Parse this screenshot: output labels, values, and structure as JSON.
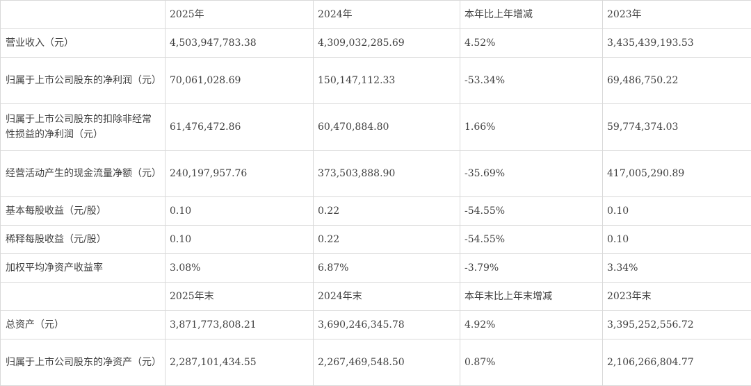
{
  "header_row_1": {
    "label": "",
    "col1": "2025年",
    "col2": "2024年",
    "col3": "本年比上年增减",
    "col4": "2023年"
  },
  "rows_1": [
    {
      "label": "营业收入（元）",
      "col1": "4,503,947,783.38",
      "col2": "4,309,032,285.69",
      "col3": "4.52%",
      "col4": "3,435,439,193.53"
    },
    {
      "label": "归属于上市公司股东的净利润（元）",
      "col1": "70,061,028.69",
      "col2": "150,147,112.33",
      "col3": "-53.34%",
      "col4": "69,486,750.22"
    },
    {
      "label": "归属于上市公司股东的扣除非经常性损益的净利润（元）",
      "col1": "61,476,472.86",
      "col2": "60,470,884.80",
      "col3": "1.66%",
      "col4": "59,774,374.03"
    },
    {
      "label": "经营活动产生的现金流量净额（元）",
      "col1": "240,197,957.76",
      "col2": "373,503,888.90",
      "col3": "-35.69%",
      "col4": "417,005,290.89"
    },
    {
      "label": "基本每股收益（元/股）",
      "col1": "0.10",
      "col2": "0.22",
      "col3": "-54.55%",
      "col4": "0.10"
    },
    {
      "label": "稀释每股收益（元/股）",
      "col1": "0.10",
      "col2": "0.22",
      "col3": "-54.55%",
      "col4": "0.10"
    },
    {
      "label": "加权平均净资产收益率",
      "col1": "3.08%",
      "col2": "6.87%",
      "col3": "-3.79%",
      "col4": "3.34%"
    }
  ],
  "header_row_2": {
    "label": "",
    "col1": "2025年末",
    "col2": "2024年末",
    "col3": "本年末比上年末增减",
    "col4": "2023年末"
  },
  "rows_2": [
    {
      "label": "总资产（元）",
      "col1": "3,871,773,808.21",
      "col2": "3,690,246,345.78",
      "col3": "4.92%",
      "col4": "3,395,252,556.72"
    },
    {
      "label": "归属于上市公司股东的净资产（元）",
      "col1": "2,287,101,434.55",
      "col2": "2,267,469,548.50",
      "col3": "0.87%",
      "col4": "2,106,266,804.77"
    }
  ]
}
